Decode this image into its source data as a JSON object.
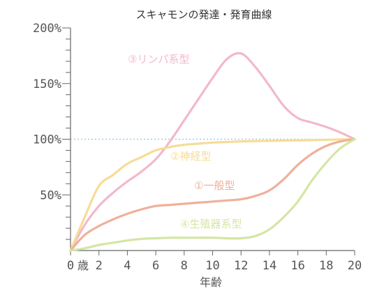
{
  "chart_data": {
    "type": "line",
    "title": "スキャモンの発達・発育曲線",
    "xlabel": "年齢",
    "x_zero_suffix": "歳",
    "xlim": [
      0,
      20
    ],
    "ylim": [
      0,
      200
    ],
    "x_ticks": [
      0,
      2,
      4,
      6,
      8,
      10,
      12,
      14,
      16,
      18,
      20
    ],
    "y_ticks": [
      {
        "value": 50,
        "label": "50%"
      },
      {
        "value": 100,
        "label": "100%"
      },
      {
        "value": 150,
        "label": "150%"
      },
      {
        "value": 200,
        "label": "200%"
      }
    ],
    "y_minor_step": 10,
    "reference_line": {
      "value": 100,
      "color": "#9ec9ec",
      "style": "dotted"
    },
    "series": [
      {
        "name": "③リンパ系型",
        "color": "#f2b8cc",
        "x": [
          0,
          1,
          2,
          3,
          4,
          5,
          6,
          7,
          8,
          9,
          10,
          11,
          12,
          13,
          14,
          15,
          16,
          17,
          18,
          19,
          20
        ],
        "y": [
          0,
          23,
          40,
          52,
          62,
          71,
          82,
          98,
          117,
          136,
          155,
          172,
          177,
          165,
          148,
          130,
          119,
          115,
          111,
          106,
          100
        ]
      },
      {
        "name": "②神経型",
        "color": "#f7dc96",
        "x": [
          0,
          1,
          2,
          3,
          4,
          5,
          6,
          7,
          8,
          9,
          10,
          11,
          12,
          13,
          14,
          15,
          16,
          17,
          18,
          19,
          20
        ],
        "y": [
          0,
          30,
          58,
          68,
          78,
          84,
          90,
          93,
          95,
          96,
          97,
          97.5,
          98,
          98.3,
          98.5,
          98.8,
          99,
          99.2,
          99.5,
          99.8,
          100
        ]
      },
      {
        "name": "①一般型",
        "color": "#efb09a",
        "x": [
          0,
          1,
          2,
          3,
          4,
          5,
          6,
          7,
          8,
          9,
          10,
          11,
          12,
          13,
          14,
          15,
          16,
          17,
          18,
          19,
          20
        ],
        "y": [
          0,
          14,
          22,
          28,
          33,
          37,
          40,
          41,
          42,
          43,
          44,
          45,
          46,
          49,
          54,
          64,
          77,
          87,
          94,
          98,
          100
        ]
      },
      {
        "name": "④生殖器系型",
        "color": "#d4e6a3",
        "x": [
          0,
          1,
          2,
          3,
          4,
          5,
          6,
          7,
          8,
          9,
          10,
          11,
          12,
          13,
          14,
          15,
          16,
          17,
          18,
          19,
          20
        ],
        "y": [
          0,
          2,
          5,
          7,
          9,
          10.5,
          11,
          11.5,
          11.5,
          11.5,
          11.5,
          11,
          11,
          13,
          19,
          30,
          44,
          63,
          79,
          92,
          100
        ]
      }
    ]
  }
}
